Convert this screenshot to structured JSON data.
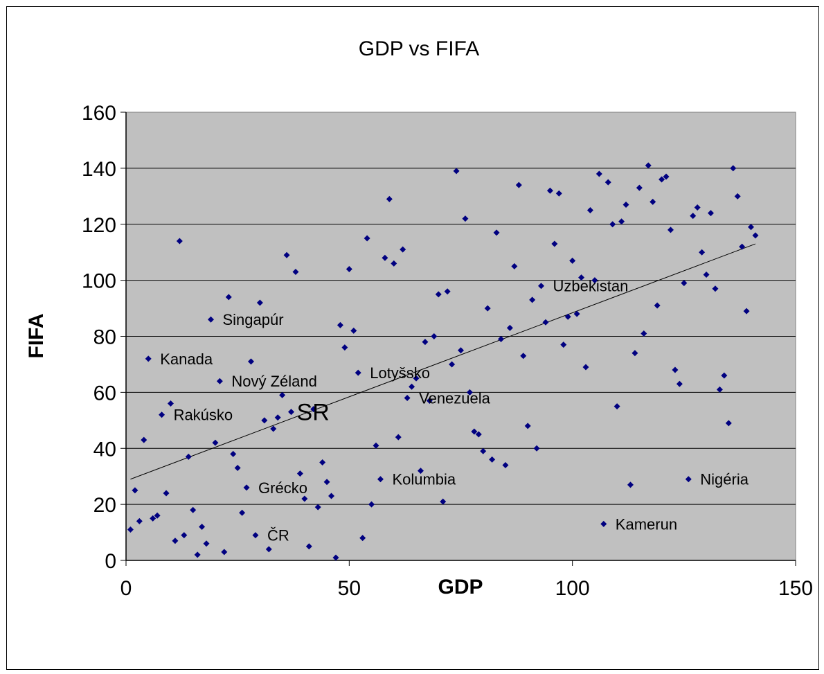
{
  "chart_data": {
    "type": "scatter",
    "title": "GDP vs FIFA",
    "xlabel": "GDP",
    "ylabel": "FIFA",
    "xlim": [
      0,
      150
    ],
    "ylim": [
      0,
      160
    ],
    "xticks": [
      "0",
      "50",
      "100",
      "150"
    ],
    "yticks": [
      "0",
      "20",
      "40",
      "60",
      "80",
      "100",
      "120",
      "140",
      "160"
    ],
    "grid": "horizontal",
    "colors": {
      "plot_background": "#c0c0c0",
      "marker": "#000080",
      "gridline": "#000000",
      "trendline": "#000000"
    },
    "trendline": {
      "x": [
        1,
        141
      ],
      "y": [
        29,
        113
      ]
    },
    "points": [
      {
        "x": 1,
        "y": 11
      },
      {
        "x": 2,
        "y": 25
      },
      {
        "x": 3,
        "y": 14
      },
      {
        "x": 4,
        "y": 43
      },
      {
        "x": 5,
        "y": 72,
        "label": "Kanada"
      },
      {
        "x": 6,
        "y": 15
      },
      {
        "x": 7,
        "y": 16
      },
      {
        "x": 8,
        "y": 52,
        "label": "Rakúsko"
      },
      {
        "x": 9,
        "y": 24
      },
      {
        "x": 10,
        "y": 56
      },
      {
        "x": 11,
        "y": 7
      },
      {
        "x": 12,
        "y": 114
      },
      {
        "x": 13,
        "y": 9
      },
      {
        "x": 14,
        "y": 37
      },
      {
        "x": 15,
        "y": 18
      },
      {
        "x": 16,
        "y": 2
      },
      {
        "x": 17,
        "y": 12
      },
      {
        "x": 18,
        "y": 6
      },
      {
        "x": 19,
        "y": 86,
        "label": "Singapúr"
      },
      {
        "x": 20,
        "y": 42
      },
      {
        "x": 21,
        "y": 64,
        "label": "Nový Zéland"
      },
      {
        "x": 22,
        "y": 3
      },
      {
        "x": 23,
        "y": 94
      },
      {
        "x": 24,
        "y": 38
      },
      {
        "x": 25,
        "y": 33
      },
      {
        "x": 26,
        "y": 17
      },
      {
        "x": 27,
        "y": 26,
        "label": "Grécko"
      },
      {
        "x": 28,
        "y": 71
      },
      {
        "x": 29,
        "y": 9,
        "label": "ČR"
      },
      {
        "x": 30,
        "y": 92
      },
      {
        "x": 31,
        "y": 50
      },
      {
        "x": 32,
        "y": 4
      },
      {
        "x": 33,
        "y": 47
      },
      {
        "x": 34,
        "y": 51
      },
      {
        "x": 35,
        "y": 59
      },
      {
        "x": 36,
        "y": 109
      },
      {
        "x": 37,
        "y": 53,
        "label": "SR"
      },
      {
        "x": 38,
        "y": 103
      },
      {
        "x": 39,
        "y": 31
      },
      {
        "x": 40,
        "y": 22
      },
      {
        "x": 41,
        "y": 5
      },
      {
        "x": 42,
        "y": 54
      },
      {
        "x": 43,
        "y": 19
      },
      {
        "x": 44,
        "y": 35
      },
      {
        "x": 45,
        "y": 28
      },
      {
        "x": 46,
        "y": 23
      },
      {
        "x": 47,
        "y": 1
      },
      {
        "x": 48,
        "y": 84
      },
      {
        "x": 49,
        "y": 76
      },
      {
        "x": 50,
        "y": 104
      },
      {
        "x": 51,
        "y": 82
      },
      {
        "x": 52,
        "y": 67,
        "label": "Lotyšsko"
      },
      {
        "x": 53,
        "y": 8
      },
      {
        "x": 54,
        "y": 115
      },
      {
        "x": 55,
        "y": 20
      },
      {
        "x": 56,
        "y": 41
      },
      {
        "x": 57,
        "y": 29,
        "label": "Kolumbia"
      },
      {
        "x": 58,
        "y": 108
      },
      {
        "x": 59,
        "y": 129
      },
      {
        "x": 60,
        "y": 106
      },
      {
        "x": 61,
        "y": 44
      },
      {
        "x": 62,
        "y": 111
      },
      {
        "x": 63,
        "y": 58,
        "label": "Venezuela"
      },
      {
        "x": 64,
        "y": 62
      },
      {
        "x": 65,
        "y": 65
      },
      {
        "x": 66,
        "y": 32
      },
      {
        "x": 67,
        "y": 78
      },
      {
        "x": 68,
        "y": 57
      },
      {
        "x": 69,
        "y": 80
      },
      {
        "x": 70,
        "y": 95
      },
      {
        "x": 71,
        "y": 21
      },
      {
        "x": 72,
        "y": 96
      },
      {
        "x": 73,
        "y": 70
      },
      {
        "x": 74,
        "y": 139
      },
      {
        "x": 75,
        "y": 75
      },
      {
        "x": 76,
        "y": 122
      },
      {
        "x": 77,
        "y": 60
      },
      {
        "x": 78,
        "y": 46
      },
      {
        "x": 79,
        "y": 45
      },
      {
        "x": 80,
        "y": 39
      },
      {
        "x": 81,
        "y": 90
      },
      {
        "x": 82,
        "y": 36
      },
      {
        "x": 83,
        "y": 117
      },
      {
        "x": 84,
        "y": 79
      },
      {
        "x": 85,
        "y": 34
      },
      {
        "x": 86,
        "y": 83
      },
      {
        "x": 87,
        "y": 105
      },
      {
        "x": 88,
        "y": 134
      },
      {
        "x": 89,
        "y": 73
      },
      {
        "x": 90,
        "y": 48
      },
      {
        "x": 91,
        "y": 93
      },
      {
        "x": 92,
        "y": 40
      },
      {
        "x": 93,
        "y": 98,
        "label": "Uzbekistan"
      },
      {
        "x": 94,
        "y": 85
      },
      {
        "x": 95,
        "y": 132
      },
      {
        "x": 96,
        "y": 113
      },
      {
        "x": 97,
        "y": 131
      },
      {
        "x": 98,
        "y": 77
      },
      {
        "x": 99,
        "y": 87
      },
      {
        "x": 100,
        "y": 107
      },
      {
        "x": 101,
        "y": 88
      },
      {
        "x": 102,
        "y": 101
      },
      {
        "x": 103,
        "y": 69
      },
      {
        "x": 104,
        "y": 125
      },
      {
        "x": 105,
        "y": 100
      },
      {
        "x": 106,
        "y": 138
      },
      {
        "x": 107,
        "y": 13,
        "label": "Kamerun"
      },
      {
        "x": 108,
        "y": 135
      },
      {
        "x": 109,
        "y": 120
      },
      {
        "x": 110,
        "y": 55
      },
      {
        "x": 111,
        "y": 121
      },
      {
        "x": 112,
        "y": 127
      },
      {
        "x": 113,
        "y": 27
      },
      {
        "x": 114,
        "y": 74
      },
      {
        "x": 115,
        "y": 133
      },
      {
        "x": 116,
        "y": 81
      },
      {
        "x": 117,
        "y": 141
      },
      {
        "x": 118,
        "y": 128
      },
      {
        "x": 119,
        "y": 91
      },
      {
        "x": 120,
        "y": 136
      },
      {
        "x": 121,
        "y": 137
      },
      {
        "x": 122,
        "y": 118
      },
      {
        "x": 123,
        "y": 68
      },
      {
        "x": 124,
        "y": 63
      },
      {
        "x": 125,
        "y": 99
      },
      {
        "x": 126,
        "y": 29,
        "label": "Nigéria"
      },
      {
        "x": 127,
        "y": 123
      },
      {
        "x": 128,
        "y": 126
      },
      {
        "x": 129,
        "y": 110
      },
      {
        "x": 130,
        "y": 102
      },
      {
        "x": 131,
        "y": 124
      },
      {
        "x": 132,
        "y": 97
      },
      {
        "x": 133,
        "y": 61
      },
      {
        "x": 134,
        "y": 66
      },
      {
        "x": 135,
        "y": 49
      },
      {
        "x": 136,
        "y": 140
      },
      {
        "x": 137,
        "y": 130
      },
      {
        "x": 138,
        "y": 112
      },
      {
        "x": 139,
        "y": 89
      },
      {
        "x": 140,
        "y": 119
      },
      {
        "x": 141,
        "y": 116
      }
    ]
  }
}
